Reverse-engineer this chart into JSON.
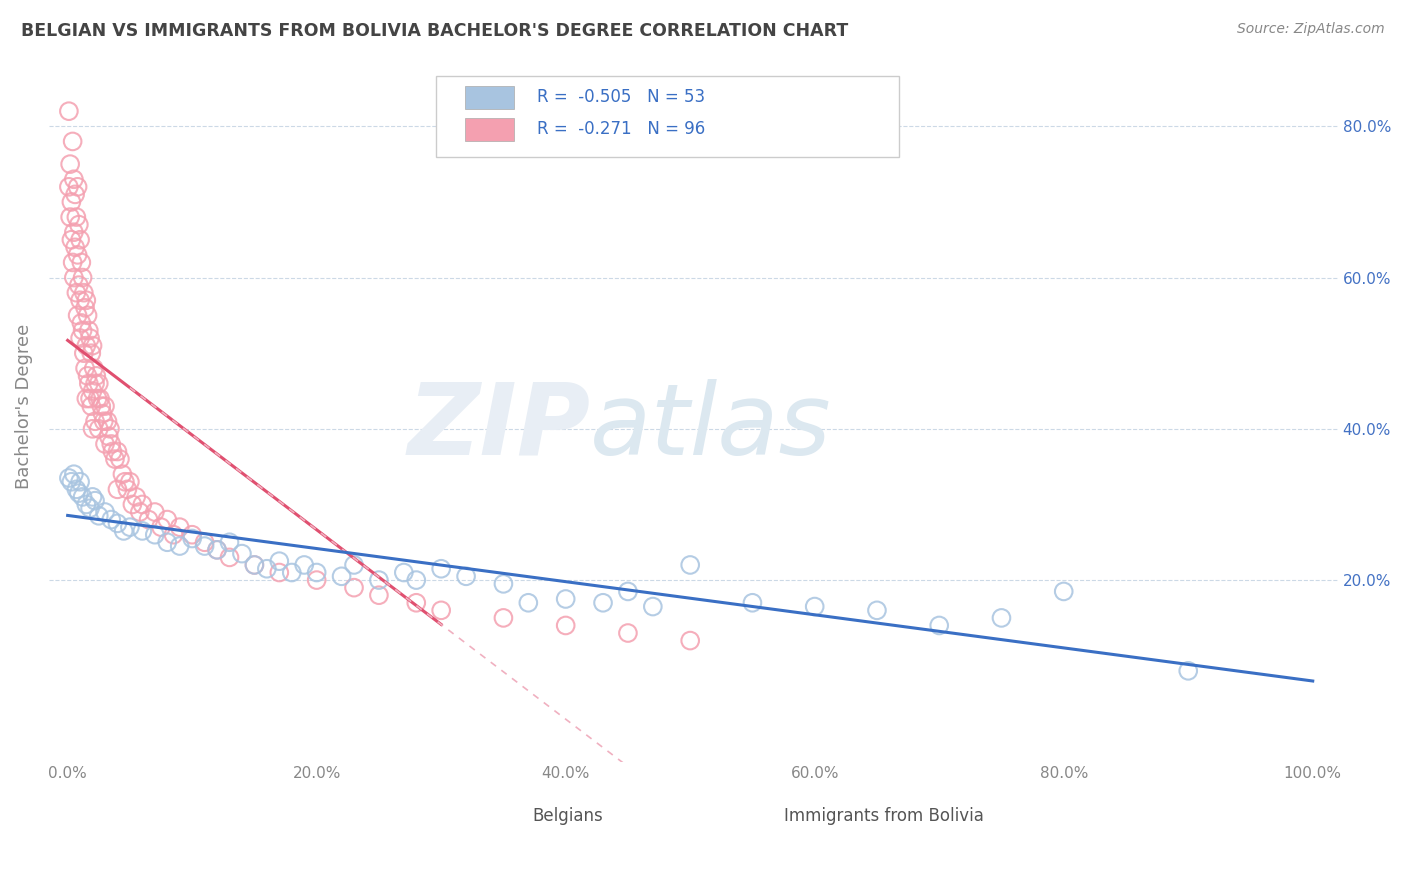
{
  "title": "BELGIAN VS IMMIGRANTS FROM BOLIVIA BACHELOR'S DEGREE CORRELATION CHART",
  "source": "Source: ZipAtlas.com",
  "ylabel": "Bachelor's Degree",
  "r_belgian": -0.505,
  "n_belgian": 53,
  "r_bolivia": -0.271,
  "n_bolivia": 96,
  "belgian_color": "#a8c4e0",
  "bolivia_color": "#f4a0b0",
  "belgian_line_color": "#3a6fc4",
  "bolivia_line_color": "#e05070",
  "bolivia_dash_color": "#f0b0c0",
  "legend_r_color": "#3a6fc4",
  "right_tick_color": "#4472c4",
  "xtick_color": "#888888",
  "ytick_color": "#888888"
}
